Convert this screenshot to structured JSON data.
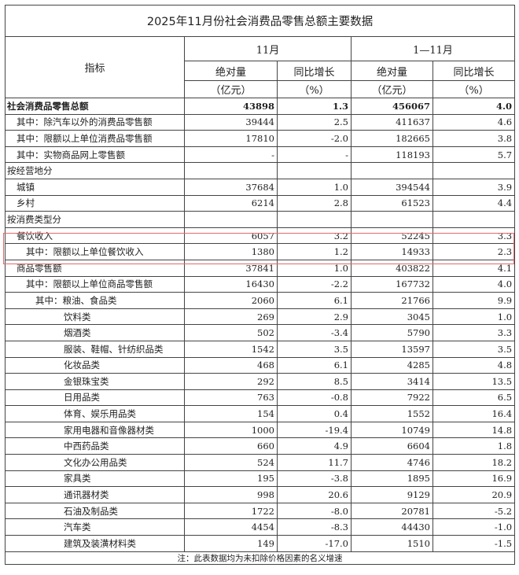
{
  "title": "2025年11月份社会消费品零售总额主要数据",
  "header": {
    "indicator": "指标",
    "period_month": "11月",
    "period_ytd": "1—11月",
    "abs": "绝对量",
    "yoy": "同比增长",
    "unit_abs": "（亿元）",
    "unit_pct": "（%）"
  },
  "highlight_color": "#e06a6a",
  "rows": [
    {
      "name": "社会消费品零售总额",
      "indent": 0,
      "bold": true,
      "m_abs": "43898",
      "m_yoy": "1.3",
      "y_abs": "456067",
      "y_yoy": "4.0"
    },
    {
      "name": "其中：除汽车以外的消费品零售额",
      "indent": 1,
      "m_abs": "39444",
      "m_yoy": "2.5",
      "y_abs": "411637",
      "y_yoy": "4.6"
    },
    {
      "name": "其中：限额以上单位消费品零售额",
      "indent": 1,
      "m_abs": "17810",
      "m_yoy": "-2.0",
      "y_abs": "182665",
      "y_yoy": "3.8"
    },
    {
      "name": "其中：实物商品网上零售额",
      "indent": 1,
      "m_abs": "-",
      "m_yoy": "-",
      "y_abs": "118193",
      "y_yoy": "5.7"
    },
    {
      "name": "按经营地分",
      "indent": 0,
      "m_abs": "",
      "m_yoy": "",
      "y_abs": "",
      "y_yoy": ""
    },
    {
      "name": "城镇",
      "indent": 1,
      "m_abs": "37684",
      "m_yoy": "1.0",
      "y_abs": "394544",
      "y_yoy": "3.9"
    },
    {
      "name": "乡村",
      "indent": 1,
      "m_abs": "6214",
      "m_yoy": "2.8",
      "y_abs": "61523",
      "y_yoy": "4.4"
    },
    {
      "name": "按消费类型分",
      "indent": 0,
      "m_abs": "",
      "m_yoy": "",
      "y_abs": "",
      "y_yoy": ""
    },
    {
      "name": "餐饮收入",
      "indent": 1,
      "m_abs": "6057",
      "m_yoy": "3.2",
      "y_abs": "52245",
      "y_yoy": "3.3"
    },
    {
      "name": "其中：限额以上单位餐饮收入",
      "indent": 2,
      "m_abs": "1380",
      "m_yoy": "1.2",
      "y_abs": "14933",
      "y_yoy": "2.3"
    },
    {
      "name": "商品零售额",
      "indent": 1,
      "m_abs": "37841",
      "m_yoy": "1.0",
      "y_abs": "403822",
      "y_yoy": "4.1"
    },
    {
      "name": "其中：限额以上单位商品零售额",
      "indent": 2,
      "m_abs": "16430",
      "m_yoy": "-2.2",
      "y_abs": "167732",
      "y_yoy": "4.0"
    },
    {
      "name": "其中：粮油、食品类",
      "indent": 3,
      "m_abs": "2060",
      "m_yoy": "6.1",
      "y_abs": "21766",
      "y_yoy": "9.9"
    },
    {
      "name": "饮料类",
      "indent": 4,
      "m_abs": "269",
      "m_yoy": "2.9",
      "y_abs": "3045",
      "y_yoy": "1.0"
    },
    {
      "name": "烟酒类",
      "indent": 4,
      "m_abs": "502",
      "m_yoy": "-3.4",
      "y_abs": "5790",
      "y_yoy": "3.3"
    },
    {
      "name": "服装、鞋帽、针纺织品类",
      "indent": 4,
      "m_abs": "1542",
      "m_yoy": "3.5",
      "y_abs": "13597",
      "y_yoy": "3.5"
    },
    {
      "name": "化妆品类",
      "indent": 4,
      "m_abs": "468",
      "m_yoy": "6.1",
      "y_abs": "4285",
      "y_yoy": "4.8"
    },
    {
      "name": "金银珠宝类",
      "indent": 4,
      "m_abs": "292",
      "m_yoy": "8.5",
      "y_abs": "3414",
      "y_yoy": "13.5"
    },
    {
      "name": "日用品类",
      "indent": 4,
      "m_abs": "763",
      "m_yoy": "-0.8",
      "y_abs": "7922",
      "y_yoy": "6.5"
    },
    {
      "name": "体育、娱乐用品类",
      "indent": 4,
      "m_abs": "154",
      "m_yoy": "0.4",
      "y_abs": "1552",
      "y_yoy": "16.4"
    },
    {
      "name": "家用电器和音像器材类",
      "indent": 4,
      "m_abs": "1000",
      "m_yoy": "-19.4",
      "y_abs": "10749",
      "y_yoy": "14.8"
    },
    {
      "name": "中西药品类",
      "indent": 4,
      "m_abs": "660",
      "m_yoy": "4.9",
      "y_abs": "6604",
      "y_yoy": "1.8"
    },
    {
      "name": "文化办公用品类",
      "indent": 4,
      "m_abs": "524",
      "m_yoy": "11.7",
      "y_abs": "4746",
      "y_yoy": "18.2"
    },
    {
      "name": "家具类",
      "indent": 4,
      "m_abs": "195",
      "m_yoy": "-3.8",
      "y_abs": "1895",
      "y_yoy": "16.9"
    },
    {
      "name": "通讯器材类",
      "indent": 4,
      "m_abs": "998",
      "m_yoy": "20.6",
      "y_abs": "9129",
      "y_yoy": "20.9"
    },
    {
      "name": "石油及制品类",
      "indent": 4,
      "m_abs": "1722",
      "m_yoy": "-8.0",
      "y_abs": "20781",
      "y_yoy": "-5.2"
    },
    {
      "name": "汽车类",
      "indent": 4,
      "m_abs": "4454",
      "m_yoy": "-8.3",
      "y_abs": "44430",
      "y_yoy": "-1.0"
    },
    {
      "name": "建筑及装潢材料类",
      "indent": 4,
      "m_abs": "149",
      "m_yoy": "-17.0",
      "y_abs": "1510",
      "y_yoy": "-1.5"
    }
  ],
  "note": "注：此表数据均为未扣除价格因素的名义增速"
}
